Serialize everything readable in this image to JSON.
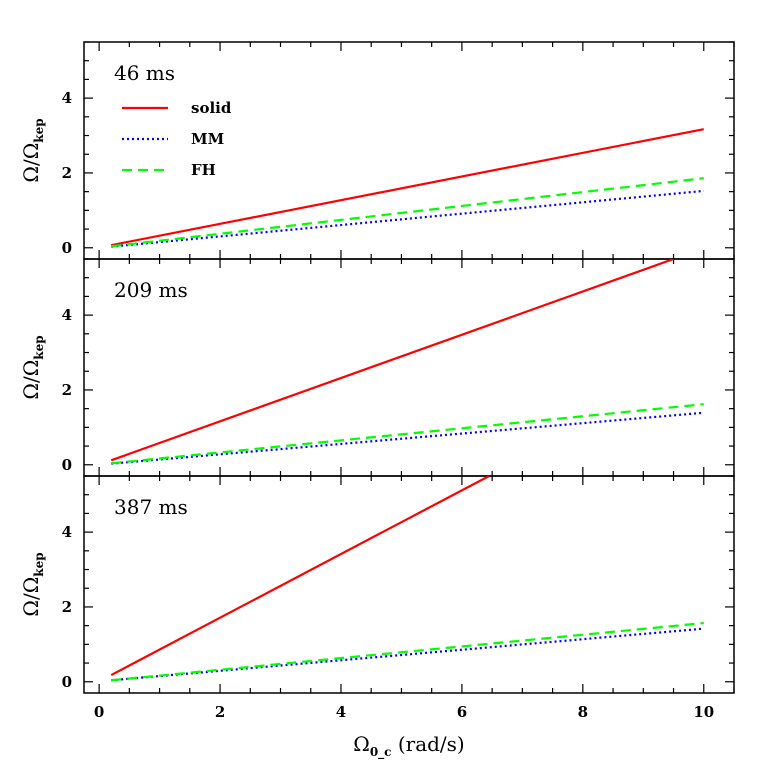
{
  "chart_data": {
    "type": "line",
    "xlim": [
      -0.25,
      10.5
    ],
    "ylim": [
      -0.3,
      5.5
    ],
    "xticks": [
      0,
      2,
      4,
      6,
      8,
      10
    ],
    "yticks": [
      0,
      2,
      4
    ],
    "x_minor_step": 0.5,
    "y_minor_step": 0.5,
    "xlabel": {
      "main": "Ω",
      "sub": "0_c",
      "rest": "(rad/s)"
    },
    "ylabel": {
      "main": "Ω/Ω",
      "sub": "kep"
    },
    "legend": {
      "placement": "top-left of first panel",
      "entries": [
        {
          "name": "solid",
          "color": "#ff0000",
          "dash": "solid"
        },
        {
          "name": "MM",
          "color": "#0000ff",
          "dash": "dotted"
        },
        {
          "name": "FH",
          "color": "#00ff00",
          "dash": "dashed"
        }
      ]
    },
    "panels": [
      {
        "title": "46 ms",
        "series": [
          {
            "name": "solid",
            "color": "#ff0000",
            "dash": "solid",
            "x": [
              0.2,
              10
            ],
            "y": [
              0.07,
              3.17
            ]
          },
          {
            "name": "MM",
            "color": "#0000ff",
            "dash": "dotted",
            "x": [
              0.2,
              10
            ],
            "y": [
              0.03,
              1.52
            ]
          },
          {
            "name": "FH",
            "color": "#00ff00",
            "dash": "dashed",
            "x": [
              0.2,
              10
            ],
            "y": [
              0.04,
              1.86
            ]
          }
        ]
      },
      {
        "title": "209 ms",
        "series": [
          {
            "name": "solid",
            "color": "#ff0000",
            "dash": "solid",
            "x": [
              0.2,
              9.5
            ],
            "y": [
              0.12,
              5.5
            ]
          },
          {
            "name": "MM",
            "color": "#0000ff",
            "dash": "dotted",
            "x": [
              0.2,
              10
            ],
            "y": [
              0.03,
              1.39
            ]
          },
          {
            "name": "FH",
            "color": "#00ff00",
            "dash": "dashed",
            "x": [
              0.2,
              10
            ],
            "y": [
              0.04,
              1.62
            ]
          }
        ]
      },
      {
        "title": "387 ms",
        "series": [
          {
            "name": "solid",
            "color": "#ff0000",
            "dash": "solid",
            "x": [
              0.2,
              6.45
            ],
            "y": [
              0.18,
              5.5
            ]
          },
          {
            "name": "MM",
            "color": "#0000ff",
            "dash": "dotted",
            "x": [
              0.2,
              10
            ],
            "y": [
              0.04,
              1.42
            ]
          },
          {
            "name": "FH",
            "color": "#00ff00",
            "dash": "dashed",
            "x": [
              0.2,
              10
            ],
            "y": [
              0.04,
              1.57
            ]
          }
        ]
      }
    ]
  }
}
